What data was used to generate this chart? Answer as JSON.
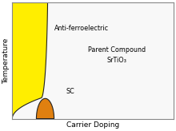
{
  "title": "",
  "xlabel": "Carrier Doping",
  "ylabel": "Temperature",
  "label_antiferro": "Anti-ferroelectric",
  "label_sc": "SC",
  "label_compound": "Parent Compound\nSrTiO₃",
  "color_antiferro": "#FFEE00",
  "color_sc": "#E08010",
  "color_background": "#FFFFFF",
  "color_plot_bg": "#F8F8F8",
  "antiferro_edge_color": "#222222",
  "sc_edge_color": "#222222",
  "border_color": "#888888"
}
